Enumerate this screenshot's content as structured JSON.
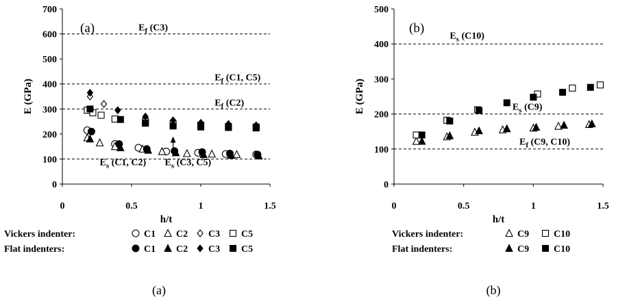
{
  "chart_data": [
    {
      "type": "scatter",
      "title": "",
      "panel_label": "(a)",
      "caption": "(a)",
      "xlabel": "h/t",
      "ylabel": "E (GPa)",
      "xlim": [
        0,
        1.5
      ],
      "ylim": [
        0,
        700
      ],
      "x_ticks": [
        "0",
        "0.5",
        "1",
        "1.5"
      ],
      "y_ticks": [
        "0",
        "100",
        "200",
        "300",
        "400",
        "500",
        "600",
        "700"
      ],
      "grid": false,
      "reference_lines": [
        {
          "y": 600,
          "label_main": "E",
          "label_sub": "f",
          "label_rest": " (C3)",
          "label_x": 0.55
        },
        {
          "y": 400,
          "label_main": "E",
          "label_sub": "f",
          "label_rest": " (C1, C5)",
          "label_x": 1.1
        },
        {
          "y": 300,
          "label_main": "E",
          "label_sub": "f",
          "label_rest": " (C2)",
          "label_x": 1.1
        },
        {
          "y": 100,
          "label_main": "E",
          "label_sub": "s",
          "label_rest": " (C1, C2)",
          "label_x": 0.27,
          "label_y": 75
        },
        {
          "y": 100,
          "label_main": "E",
          "label_sub": "s",
          "label_rest": " (C3, C5)",
          "label_x": 0.74,
          "label_y": 75
        }
      ],
      "arrow": {
        "from": [
          0.8,
          110
        ],
        "to": [
          0.8,
          190
        ]
      },
      "legend_placement": "bottom",
      "series": [
        {
          "group": "Vickers indenter",
          "name": "C1",
          "marker": "circle-open",
          "x": [
            0.18,
            0.38,
            0.55,
            0.75,
            0.98,
            1.18,
            1.4
          ],
          "y": [
            215,
            160,
            145,
            130,
            125,
            120,
            118
          ]
        },
        {
          "group": "Vickers indenter",
          "name": "C2",
          "marker": "triangle-open",
          "x": [
            0.18,
            0.27,
            0.38,
            0.58,
            0.72,
            0.9,
            1.08,
            1.26
          ],
          "y": [
            185,
            165,
            150,
            140,
            130,
            122,
            120,
            118
          ]
        },
        {
          "group": "Vickers indenter",
          "name": "C3",
          "marker": "diamond-open",
          "x": [
            0.2,
            0.3,
            0.4,
            0.6,
            0.8,
            1.0,
            1.2,
            1.4
          ],
          "y": [
            350,
            320,
            295,
            265,
            245,
            240,
            235,
            232
          ]
        },
        {
          "group": "Vickers indenter",
          "name": "C5",
          "marker": "square-open",
          "x": [
            0.18,
            0.22,
            0.28,
            0.38,
            0.6,
            0.8,
            1.0,
            1.2,
            1.4
          ],
          "y": [
            295,
            285,
            275,
            260,
            248,
            240,
            235,
            230,
            228
          ]
        },
        {
          "group": "Flat indenters",
          "name": "C1",
          "marker": "circle-filled",
          "x": [
            0.21,
            0.41,
            0.61,
            0.81,
            1.01,
            1.21,
            1.41
          ],
          "y": [
            210,
            160,
            140,
            132,
            128,
            122,
            118
          ]
        },
        {
          "group": "Flat indenters",
          "name": "C2",
          "marker": "triangle-filled",
          "x": [
            0.2,
            0.42,
            0.62,
            0.82,
            1.02,
            1.22,
            1.42
          ],
          "y": [
            180,
            145,
            135,
            125,
            118,
            115,
            112
          ]
        },
        {
          "group": "Flat indenters",
          "name": "C3",
          "marker": "diamond-filled",
          "x": [
            0.2,
            0.4,
            0.6,
            0.8,
            1.0,
            1.2,
            1.4
          ],
          "y": [
            365,
            295,
            270,
            255,
            245,
            240,
            235
          ]
        },
        {
          "group": "Flat indenters",
          "name": "C5",
          "marker": "square-filled",
          "x": [
            0.2,
            0.42,
            0.6,
            0.8,
            1.0,
            1.2,
            1.4
          ],
          "y": [
            300,
            258,
            243,
            232,
            228,
            226,
            224
          ]
        }
      ]
    },
    {
      "type": "scatter",
      "title": "",
      "panel_label": "(b)",
      "caption": "(b)",
      "xlabel": "h/t",
      "ylabel": "E (GPa)",
      "xlim": [
        0,
        1.5
      ],
      "ylim": [
        0,
        500
      ],
      "x_ticks": [
        "0",
        "0.5",
        "1",
        "1.5"
      ],
      "y_ticks": [
        "0",
        "100",
        "200",
        "300",
        "400",
        "500"
      ],
      "grid": false,
      "reference_lines": [
        {
          "y": 400,
          "label_main": "E",
          "label_sub": "s",
          "label_rest": " (C10)",
          "label_x": 0.4,
          "label_y": 415
        },
        {
          "y": 200,
          "label_main": "E",
          "label_sub": "s",
          "label_rest": " (C9)",
          "label_x": 0.85,
          "label_y": 212
        },
        {
          "y": 100,
          "label_main": "E",
          "label_sub": "f",
          "label_rest": " (C9, C10)",
          "label_x": 0.9,
          "label_y": 112
        }
      ],
      "legend_placement": "bottom",
      "series": [
        {
          "group": "Vickers indenter",
          "name": "C9",
          "marker": "triangle-open",
          "x": [
            0.16,
            0.38,
            0.58,
            0.78,
            1.0,
            1.18,
            1.4
          ],
          "y": [
            122,
            135,
            148,
            155,
            160,
            165,
            170
          ]
        },
        {
          "group": "Vickers indenter",
          "name": "C10",
          "marker": "square-open",
          "x": [
            0.16,
            0.38,
            0.6,
            1.03,
            1.28,
            1.48
          ],
          "y": [
            140,
            182,
            212,
            257,
            274,
            283
          ]
        },
        {
          "group": "Flat indenters",
          "name": "C9",
          "marker": "triangle-filled",
          "x": [
            0.2,
            0.4,
            0.61,
            0.81,
            1.02,
            1.22,
            1.42
          ],
          "y": [
            122,
            138,
            152,
            158,
            162,
            168,
            172
          ]
        },
        {
          "group": "Flat indenters",
          "name": "C10",
          "marker": "square-filled",
          "x": [
            0.2,
            0.4,
            0.61,
            0.81,
            1.0,
            1.21,
            1.41
          ],
          "y": [
            140,
            180,
            210,
            232,
            248,
            262,
            276
          ]
        }
      ]
    }
  ],
  "legends": [
    {
      "rows": [
        {
          "label": "Vickers indenter:",
          "entries": [
            {
              "marker": "circle-open",
              "name": "C1"
            },
            {
              "marker": "triangle-open",
              "name": "C2"
            },
            {
              "marker": "diamond-open",
              "name": "C3"
            },
            {
              "marker": "square-open",
              "name": "C5"
            }
          ]
        },
        {
          "label": "Flat indenters:",
          "entries": [
            {
              "marker": "circle-filled",
              "name": "C1"
            },
            {
              "marker": "triangle-filled",
              "name": "C2"
            },
            {
              "marker": "diamond-filled",
              "name": "C3"
            },
            {
              "marker": "square-filled",
              "name": "C5"
            }
          ]
        }
      ]
    },
    {
      "rows": [
        {
          "label": "Vickers indenter:",
          "entries": [
            {
              "marker": "triangle-open",
              "name": "C9"
            },
            {
              "marker": "square-open",
              "name": "C10"
            }
          ]
        },
        {
          "label": "Flat indenters:",
          "entries": [
            {
              "marker": "triangle-filled",
              "name": "C9"
            },
            {
              "marker": "square-filled",
              "name": "C10"
            }
          ]
        }
      ]
    }
  ]
}
